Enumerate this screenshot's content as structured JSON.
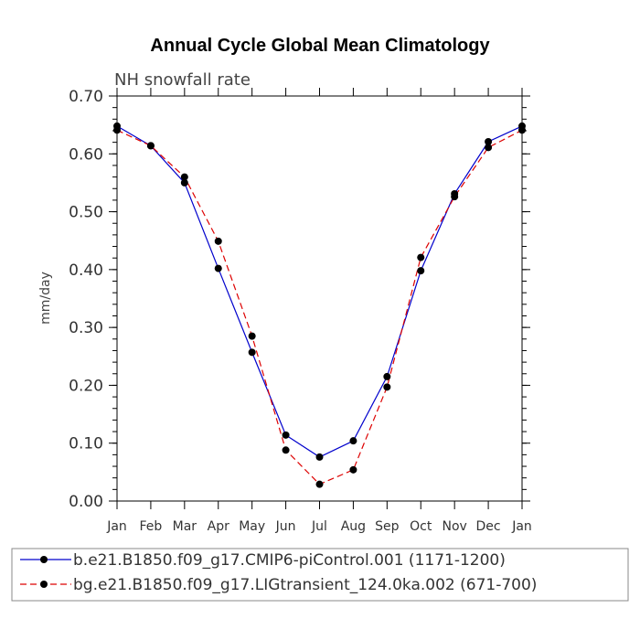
{
  "chart_data": {
    "type": "line",
    "title": "Annual Cycle Global Mean Climatology",
    "subtitle": "NH snowfall rate",
    "xlabel": "",
    "ylabel": "mm/day",
    "categories": [
      "Jan",
      "Feb",
      "Mar",
      "Apr",
      "May",
      "Jun",
      "Jul",
      "Aug",
      "Sep",
      "Oct",
      "Nov",
      "Dec",
      "Jan"
    ],
    "ylim": [
      0,
      0.7
    ],
    "yticks": [
      "0.00",
      "0.10",
      "0.20",
      "0.30",
      "0.40",
      "0.50",
      "0.60",
      "0.70"
    ],
    "grid": false,
    "legend_position": "bottom",
    "series": [
      {
        "name": "b.e21.B1850.f09_g17.CMIP6-piControl.001 (1171-1200)",
        "color": "#0000cc",
        "dash": "solid",
        "values": [
          0.648,
          0.614,
          0.55,
          0.402,
          0.257,
          0.114,
          0.076,
          0.104,
          0.215,
          0.398,
          0.531,
          0.621,
          0.648
        ]
      },
      {
        "name": "bg.e21.B1850.f09_g17.LIGtransient_124.0ka.002 (671-700)",
        "color": "#dd0000",
        "dash": "dashed",
        "values": [
          0.641,
          0.614,
          0.56,
          0.449,
          0.285,
          0.088,
          0.029,
          0.054,
          0.197,
          0.421,
          0.526,
          0.611,
          0.641
        ]
      }
    ]
  }
}
